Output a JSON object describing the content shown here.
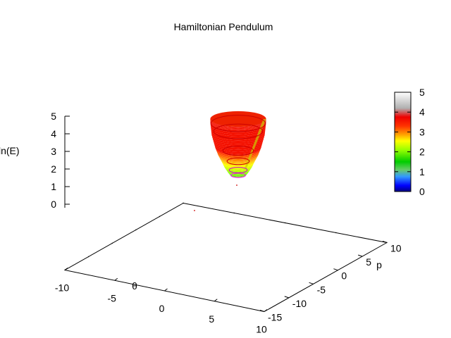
{
  "chart_data": {
    "type": "surface3d",
    "title": "Hamiltonian Pendulum",
    "xlabel": "θ",
    "ylabel": "p",
    "zlabel": "ln(E)",
    "x_ticks": [
      "-10",
      "-5",
      "0",
      "5",
      "10"
    ],
    "x_tick_values": [
      -10,
      -5,
      0,
      5,
      10
    ],
    "y_ticks": [
      "-15",
      "-10",
      "-5",
      "0",
      "5",
      "10"
    ],
    "y_tick_values": [
      -15,
      -10,
      -5,
      0,
      5,
      10
    ],
    "z_ticks": [
      "0",
      "1",
      "2",
      "3",
      "4",
      "5"
    ],
    "z_tick_values": [
      0,
      1,
      2,
      3,
      4,
      5
    ],
    "xlim": [
      -10,
      10
    ],
    "ylim": [
      -15,
      10
    ],
    "zlim": [
      -1.2,
      5
    ],
    "colorbar": {
      "ticks": [
        "0",
        "1",
        "2",
        "3",
        "4",
        "5"
      ],
      "range": [
        0,
        5
      ],
      "colors": [
        {
          "value": 0,
          "color": "#000080"
        },
        {
          "value": 0.3,
          "color": "#0000ff"
        },
        {
          "value": 0.75,
          "color": "#3399ff"
        },
        {
          "value": 1.1,
          "color": "#66cc66"
        },
        {
          "value": 1.5,
          "color": "#00cc00"
        },
        {
          "value": 2.1,
          "color": "#99ff00"
        },
        {
          "value": 2.55,
          "color": "#ffff00"
        },
        {
          "value": 2.9,
          "color": "#ff9900"
        },
        {
          "value": 3.3,
          "color": "#ff3300"
        },
        {
          "value": 3.75,
          "color": "#ee0000"
        },
        {
          "value": 4.2,
          "color": "#b0b0b0"
        },
        {
          "value": 5,
          "color": "#ffffff"
        }
      ]
    },
    "surface_levels": [
      {
        "z": 1.8,
        "radius": 1.1
      },
      {
        "z": 2.0,
        "radius": 1.5
      },
      {
        "z": 2.3,
        "radius": 2.0
      },
      {
        "z": 2.7,
        "radius": 2.5
      },
      {
        "z": 3.0,
        "radius": 2.9
      },
      {
        "z": 3.4,
        "radius": 3.3
      },
      {
        "z": 4.1,
        "radius": 3.8
      },
      {
        "z": 4.8,
        "radius": 4.0
      },
      {
        "z": 5.0,
        "radius": 4.0
      }
    ],
    "contour_levels": [
      {
        "z": 1.8,
        "radius": 1.05,
        "color": "#ff00ff"
      },
      {
        "z": 2.1,
        "radius": 1.3,
        "color": "#cc00cc"
      },
      {
        "z": 2.6,
        "radius": 1.6,
        "color": "#cc0000"
      },
      {
        "z": 3.2,
        "radius": 2.2,
        "color": "#cc0000"
      },
      {
        "z": 4.3,
        "radius": 3.5,
        "color": "#cc0000"
      },
      {
        "z": 4.75,
        "radius": 3.9,
        "color": "#cc0000"
      }
    ],
    "center": {
      "theta": -0.5,
      "p": 4.5
    }
  }
}
